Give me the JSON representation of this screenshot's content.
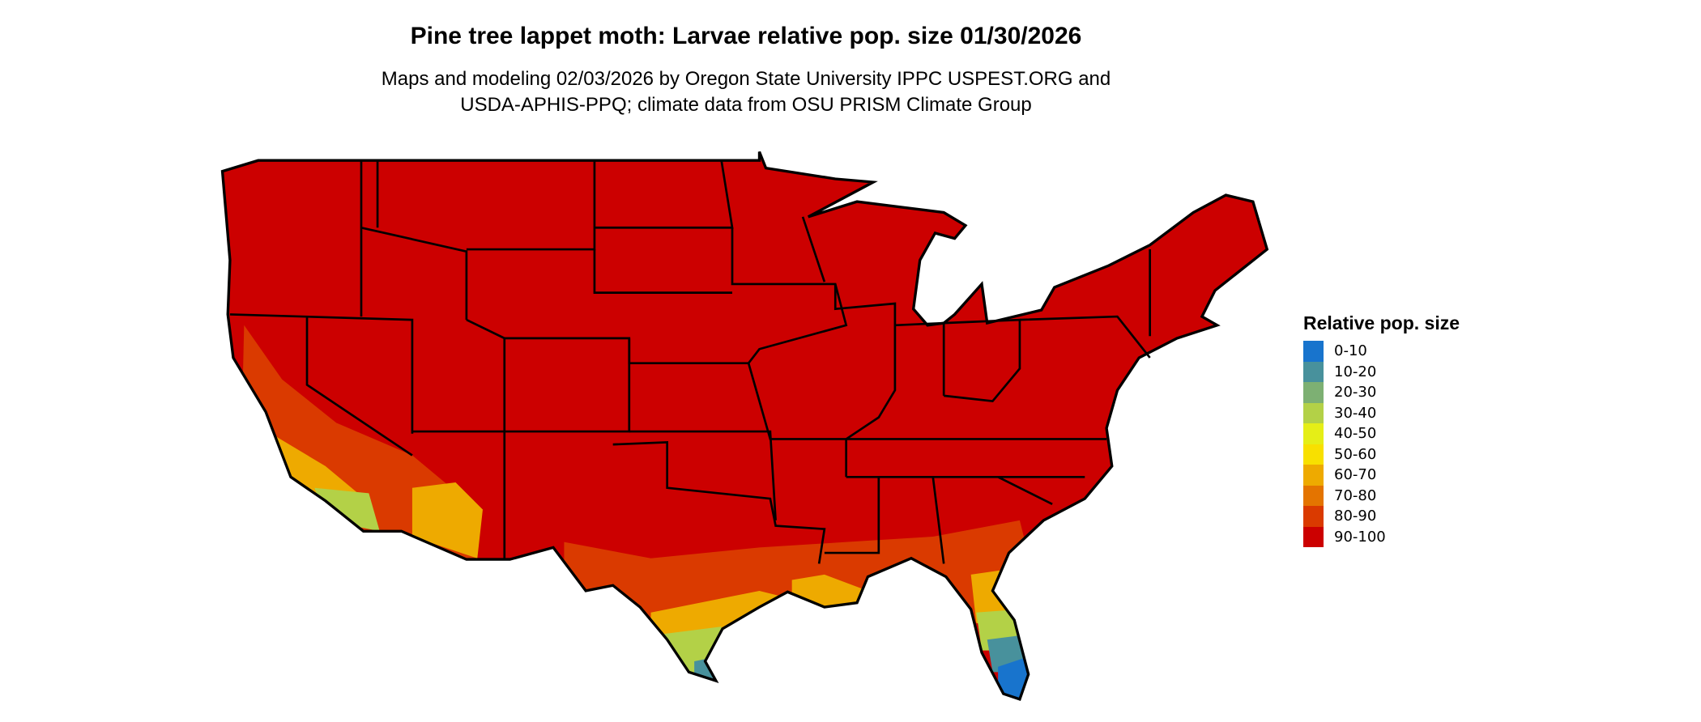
{
  "header": {
    "title": "Pine tree lappet moth: Larvae relative pop. size 01/30/2026",
    "subtitle_line1": "Maps and modeling 02/03/2026 by Oregon State University IPPC USPEST.ORG and",
    "subtitle_line2": "USDA-APHIS-PPQ; climate data from OSU PRISM Climate Group"
  },
  "map": {
    "region": "Contiguous United States",
    "dominant_class": "90-100",
    "border_color": "#000000"
  },
  "legend": {
    "title": "Relative pop. size",
    "items": [
      {
        "label": "0-10",
        "color": "#1874CD"
      },
      {
        "label": "10-20",
        "color": "#48919C"
      },
      {
        "label": "20-30",
        "color": "#7DB073"
      },
      {
        "label": "30-40",
        "color": "#B3D147"
      },
      {
        "label": "40-50",
        "color": "#E5EE17"
      },
      {
        "label": "50-60",
        "color": "#F8E000"
      },
      {
        "label": "60-70",
        "color": "#EEAA00"
      },
      {
        "label": "70-80",
        "color": "#E47400"
      },
      {
        "label": "80-90",
        "color": "#DA3A00"
      },
      {
        "label": "90-100",
        "color": "#CC0000"
      }
    ]
  }
}
